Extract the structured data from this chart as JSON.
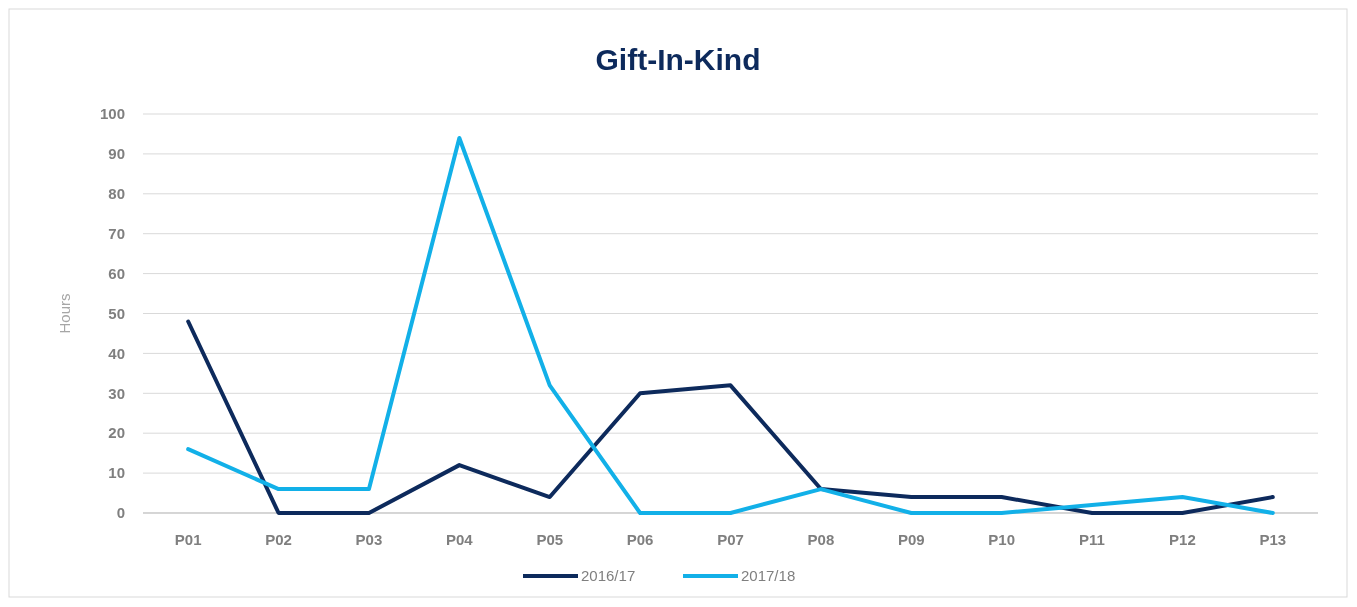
{
  "chart_data": {
    "type": "line",
    "title": "Gift-In-Kind",
    "ylabel": "Hours",
    "categories": [
      "P01",
      "P02",
      "P03",
      "P04",
      "P05",
      "P06",
      "P07",
      "P08",
      "P09",
      "P10",
      "P11",
      "P12",
      "P13"
    ],
    "series": [
      {
        "name": "2016/17",
        "color": "#0d2a5c",
        "values": [
          48,
          0,
          0,
          12,
          4,
          30,
          32,
          6,
          4,
          4,
          0,
          0,
          4
        ]
      },
      {
        "name": "2017/18",
        "color": "#12b0e8",
        "values": [
          16,
          6,
          6,
          94,
          32,
          0,
          0,
          6,
          0,
          0,
          2,
          4,
          0
        ]
      }
    ],
    "ylim": [
      0,
      100
    ],
    "yticks": [
      0,
      10,
      20,
      30,
      40,
      50,
      60,
      70,
      80,
      90,
      100
    ],
    "grid": "y",
    "legend": "bottom",
    "marker": "none",
    "line_style": "solid"
  }
}
